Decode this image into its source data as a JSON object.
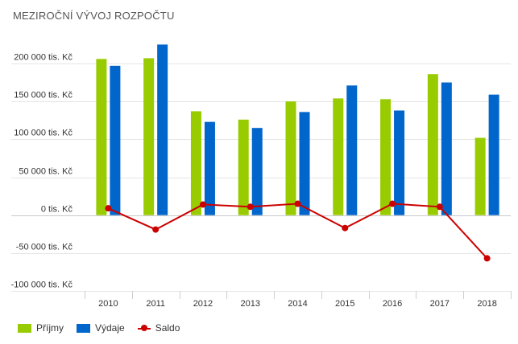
{
  "chart_data": {
    "type": "bar",
    "title": "MEZIROČNÍ VÝVOJ ROZPOČTU",
    "categories": [
      "2010",
      "2011",
      "2012",
      "2013",
      "2014",
      "2015",
      "2016",
      "2017",
      "2018"
    ],
    "y_tick_labels": [
      "200 000 tis. Kč",
      "150 000 tis. Kč",
      "100 000 tis. Kč",
      "50 000 tis. Kč",
      "0 tis. Kč",
      "-50 000 tis. Kč",
      "-100 000 tis. Kč"
    ],
    "y_ticks": [
      200000,
      150000,
      100000,
      50000,
      0,
      -50000,
      -100000
    ],
    "ylim": [
      -100000,
      200000
    ],
    "grid": true,
    "legend_position": "bottom-left",
    "series": [
      {
        "name": "Příjmy",
        "type": "bar",
        "color": "#99cc00",
        "values": [
          206000,
          207000,
          137000,
          126000,
          150000,
          154000,
          153000,
          186000,
          102000
        ]
      },
      {
        "name": "Výdaje",
        "type": "bar",
        "color": "#0066cc",
        "values": [
          197000,
          225000,
          123000,
          115000,
          136000,
          171000,
          138000,
          175000,
          159000
        ]
      },
      {
        "name": "Saldo",
        "type": "line",
        "color": "#cc0000",
        "values": [
          9000,
          -19000,
          14000,
          11000,
          15000,
          -17000,
          15000,
          11000,
          -57000
        ]
      }
    ]
  }
}
